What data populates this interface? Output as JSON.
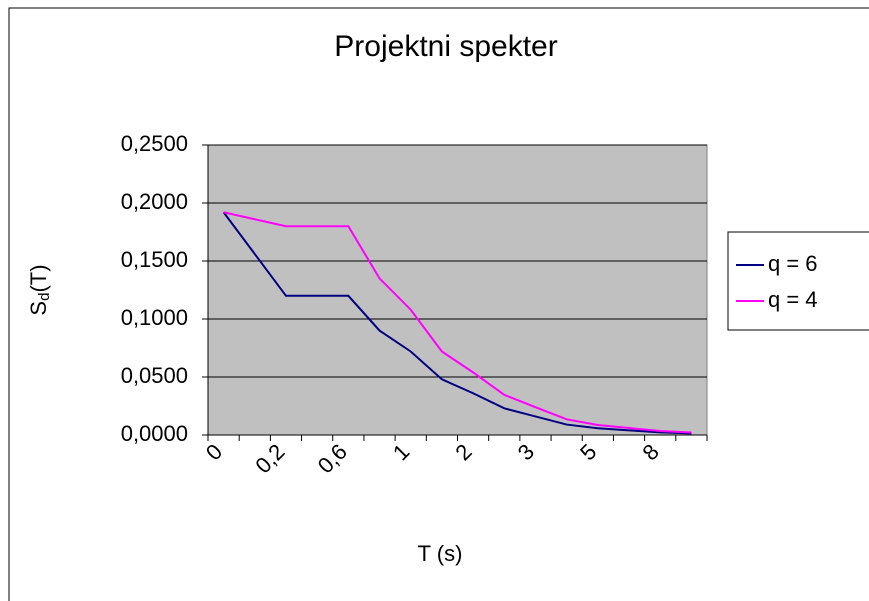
{
  "chart_data": {
    "type": "line",
    "title": "Projektni spekter",
    "xlabel": "T (s)",
    "ylabel_parts": [
      "S",
      "d",
      "(T)"
    ],
    "categories": [
      "0",
      null,
      "0,2",
      null,
      "0,6",
      null,
      "1",
      null,
      "2",
      null,
      "3",
      null,
      "5",
      null,
      "8",
      null
    ],
    "series": [
      {
        "name": "q = 6",
        "color": "#000080",
        "values": [
          0.192,
          0.156,
          0.12,
          0.12,
          0.12,
          0.09,
          0.072,
          0.048,
          0.036,
          0.023,
          0.016,
          0.009,
          0.0058,
          0.004,
          0.0023,
          0.0014
        ]
      },
      {
        "name": "q = 4",
        "color": "#ff00ff",
        "values": [
          0.192,
          0.186,
          0.18,
          0.18,
          0.18,
          0.135,
          0.108,
          0.072,
          0.054,
          0.0346,
          0.024,
          0.0135,
          0.0086,
          0.006,
          0.0034,
          0.0022
        ]
      }
    ],
    "ylim": [
      0,
      0.25
    ],
    "yticks": [
      {
        "value": 0,
        "label": "0,0000"
      },
      {
        "value": 0.05,
        "label": "0,0500"
      },
      {
        "value": 0.1,
        "label": "0,1000"
      },
      {
        "value": 0.15,
        "label": "0,1500"
      },
      {
        "value": 0.2,
        "label": "0,2000"
      },
      {
        "value": 0.25,
        "label": "0,2500"
      }
    ],
    "grid": true,
    "plot_background": "#c0c0c0",
    "legend": "right"
  }
}
